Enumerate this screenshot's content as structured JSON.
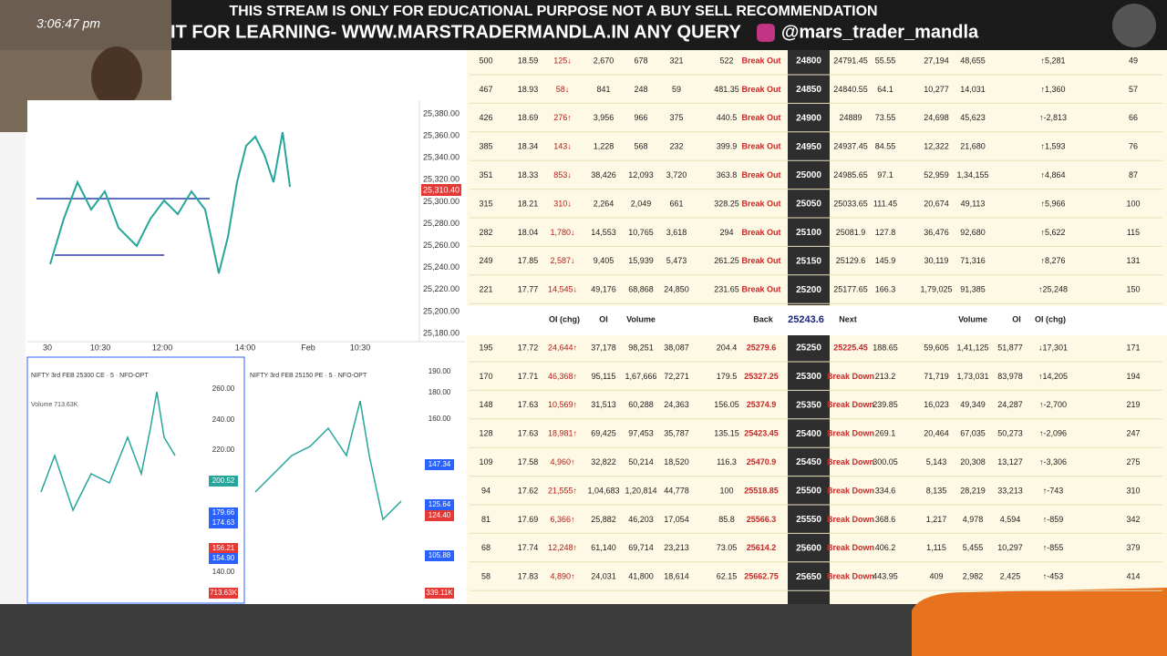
{
  "banner": {
    "line1": "THIS STREAM IS ONLY FOR EDUCATIONAL PURPOSE NOT A BUY SELL RECOMMENDATION",
    "line2": "IT FOR LEARNING- WWW.MARSTRADERMANDLA.IN ANY QUERY",
    "handle": "@mars_trader_mandla"
  },
  "clock": "3:06:47 pm",
  "main_chart": {
    "price_labels": [
      "25,380.00",
      "25,360.00",
      "25,340.00",
      "25,320.00",
      "25,300.00",
      "25,280.00",
      "25,260.00",
      "25,240.00",
      "25,220.00",
      "25,200.00",
      "25,180.00"
    ],
    "current_price": "25,310.40",
    "time_labels": [
      "30",
      "10:30",
      "12:00",
      "14:00",
      "Feb",
      "10:30"
    ]
  },
  "ce_chart": {
    "title": "NIFTY 3rd FEB 25300 CE · 5 · NFO-OPT",
    "volume": "Volume 713.63K",
    "price_labels": [
      "260.00",
      "240.00",
      "220.00",
      "200.52",
      "179.66",
      "174.63",
      "156.21",
      "154.90",
      "140.00",
      "713.63K"
    ]
  },
  "pe_chart": {
    "title": "NIFTY 3rd FEB 25150 PE · 5 · NFO-OPT",
    "price_labels": [
      "190.00",
      "180.00",
      "160.00",
      "147.34",
      "125.64",
      "124.40",
      "105.88",
      "339.11K"
    ]
  },
  "chain": {
    "upper_rows": [
      [
        "500",
        "18.59",
        "125↓",
        "2,670",
        "678",
        "321",
        "522",
        "Break Out",
        "24800",
        "24791.45",
        "55.55",
        "27,194",
        "48,655",
        "↑5,281",
        "49"
      ],
      [
        "467",
        "18.93",
        "58↓",
        "841",
        "248",
        "59",
        "481.35",
        "Break Out",
        "24850",
        "24840.55",
        "64.1",
        "10,277",
        "14,031",
        "↑1,360",
        "57"
      ],
      [
        "426",
        "18.69",
        "276↑",
        "3,956",
        "966",
        "375",
        "440.5",
        "Break Out",
        "24900",
        "24889",
        "73.55",
        "24,698",
        "45,623",
        "↑-2,813",
        "66"
      ],
      [
        "385",
        "18.34",
        "143↓",
        "1,228",
        "568",
        "232",
        "399.9",
        "Break Out",
        "24950",
        "24937.45",
        "84.55",
        "12,322",
        "21,680",
        "↑1,593",
        "76"
      ],
      [
        "351",
        "18.33",
        "853↓",
        "38,426",
        "12,093",
        "3,720",
        "363.8",
        "Break Out",
        "25000",
        "24985.65",
        "97.1",
        "52,959",
        "1,34,155",
        "↑4,864",
        "87"
      ],
      [
        "315",
        "18.21",
        "310↓",
        "2,264",
        "2,049",
        "661",
        "328.25",
        "Break Out",
        "25050",
        "25033.65",
        "111.45",
        "20,674",
        "49,113",
        "↑5,966",
        "100"
      ],
      [
        "282",
        "18.04",
        "1,780↓",
        "14,553",
        "10,765",
        "3,618",
        "294",
        "Break Out",
        "25100",
        "25081.9",
        "127.8",
        "36,476",
        "92,680",
        "↑5,622",
        "115"
      ],
      [
        "249",
        "17.85",
        "2,587↓",
        "9,405",
        "15,939",
        "5,473",
        "261.25",
        "Break Out",
        "25150",
        "25129.6",
        "145.9",
        "30,119",
        "71,316",
        "↑8,276",
        "131"
      ],
      [
        "221",
        "17.77",
        "14,545↓",
        "49,176",
        "68,868",
        "24,850",
        "231.65",
        "Break Out",
        "25200",
        "25177.65",
        "166.3",
        "1,79,025",
        "91,385",
        "↑25,248",
        "150"
      ]
    ],
    "header": {
      "oi_chg": "OI (chg)",
      "oi": "OI",
      "volume": "Volume",
      "back": "Back",
      "spot": "25243.6",
      "next": "Next",
      "put_volume": "Volume",
      "put_oi": "OI",
      "put_oi_chg": "OI (chg)"
    },
    "lower_rows": [
      [
        "195",
        "17.72",
        "24,644↑",
        "37,178",
        "98,251",
        "38,087",
        "204.4",
        "25279.6",
        "25250",
        "25225.45",
        "188.65",
        "59,605",
        "1,41,125",
        "51,877",
        "↓17,301",
        "171"
      ],
      [
        "170",
        "17.71",
        "46,368↑",
        "95,115",
        "1,67,666",
        "72,271",
        "179.5",
        "25327.25",
        "25300",
        "Break Down",
        "213.2",
        "71,719",
        "1,73,031",
        "83,978",
        "↑14,205",
        "194"
      ],
      [
        "148",
        "17.63",
        "10,569↑",
        "31,513",
        "60,288",
        "24,363",
        "156.05",
        "25374.9",
        "25350",
        "Break Down",
        "239.85",
        "16,023",
        "49,349",
        "24,287",
        "↑-2,700",
        "219"
      ],
      [
        "128",
        "17.63",
        "18,981↑",
        "69,425",
        "97,453",
        "35,787",
        "135.15",
        "25423.45",
        "25400",
        "Break Down",
        "269.1",
        "20,464",
        "67,035",
        "50,273",
        "↑-2,096",
        "247"
      ],
      [
        "109",
        "17.58",
        "4,960↑",
        "32,822",
        "50,214",
        "18,520",
        "116.3",
        "25470.9",
        "25450",
        "Break Down",
        "300.05",
        "5,143",
        "20,308",
        "13,127",
        "↑-3,306",
        "275"
      ],
      [
        "94",
        "17.62",
        "21,555↑",
        "1,04,683",
        "1,20,814",
        "44,778",
        "100",
        "25518.85",
        "25500",
        "Break Down",
        "334.6",
        "8,135",
        "28,219",
        "33,213",
        "↑-743",
        "310"
      ],
      [
        "81",
        "17.69",
        "6,366↑",
        "25,882",
        "46,203",
        "17,054",
        "85.8",
        "25566.3",
        "25550",
        "Break Down",
        "368.6",
        "1,217",
        "4,978",
        "4,594",
        "↑-859",
        "342"
      ],
      [
        "68",
        "17.74",
        "12,248↑",
        "61,140",
        "69,714",
        "23,213",
        "73.05",
        "25614.2",
        "25600",
        "Break Down",
        "406.2",
        "1,115",
        "5,455",
        "10,297",
        "↑-855",
        "379"
      ],
      [
        "58",
        "17.83",
        "4,890↑",
        "24,031",
        "41,800",
        "18,614",
        "62.15",
        "25662.75",
        "25650",
        "Break Down",
        "443.95",
        "409",
        "2,982",
        "2,425",
        "↑-453",
        "414"
      ]
    ]
  }
}
